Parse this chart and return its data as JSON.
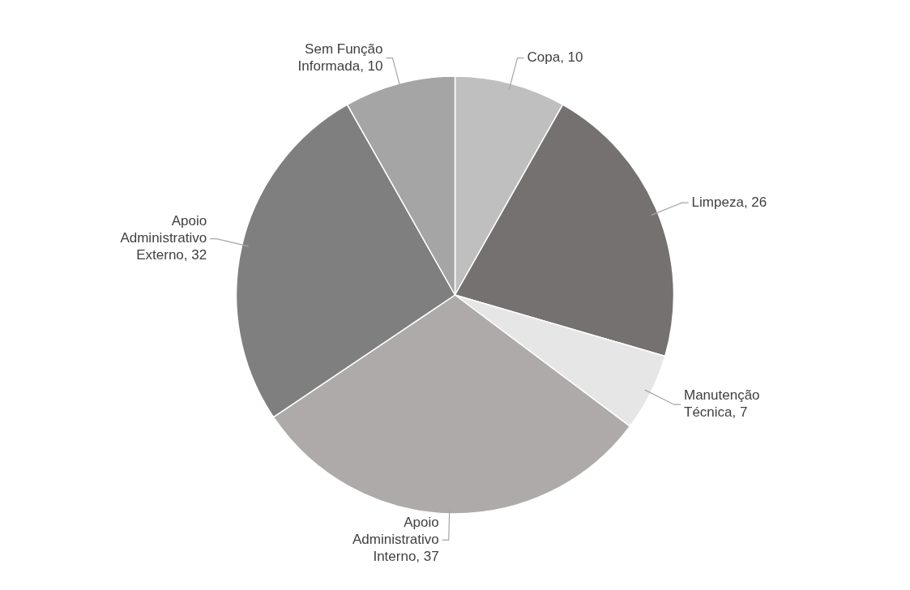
{
  "chart_data": {
    "type": "pie",
    "categories": [
      "Copa",
      "Limpeza",
      "Manutenção Técnica",
      "Apoio Administrativo Interno",
      "Apoio Administrativo Externo",
      "Sem Função Informada"
    ],
    "values": [
      10,
      26,
      7,
      37,
      32,
      10
    ],
    "colors": [
      "#bfbfbf",
      "#767171",
      "#e7e6e6",
      "#aeaaaa",
      "#7f7f7f",
      "#a5a5a5"
    ],
    "value_labels": [
      ", 10",
      ", 26",
      ", 7",
      ", 37",
      ", 32",
      ", 10"
    ],
    "legend": false
  }
}
